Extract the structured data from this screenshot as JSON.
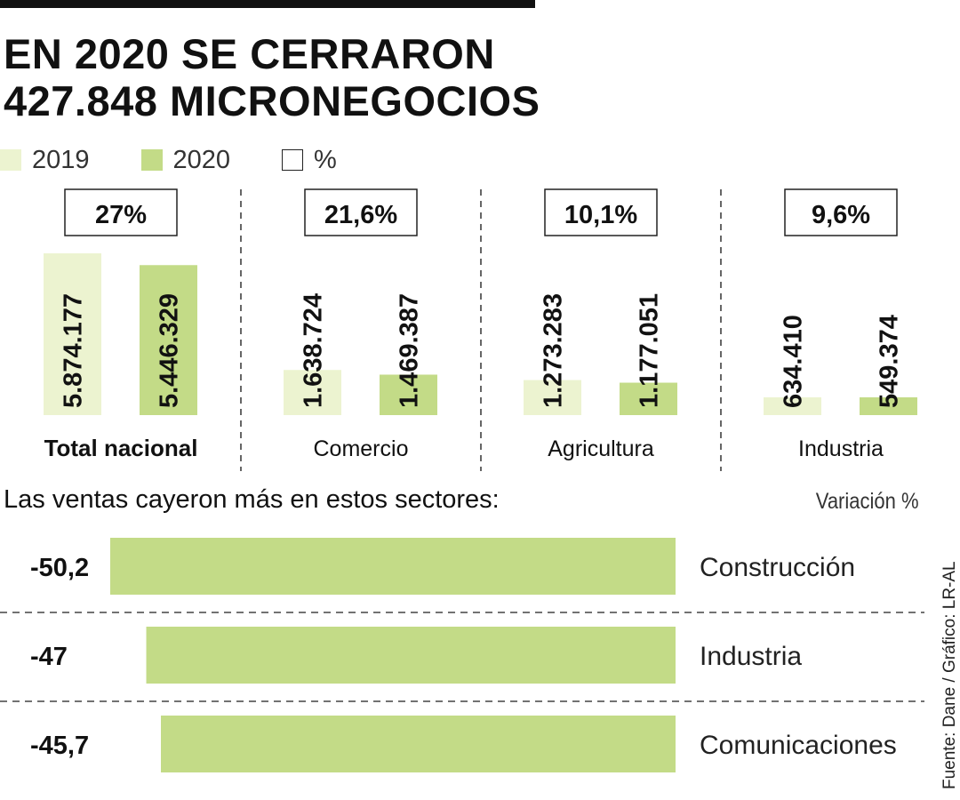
{
  "title_line1": "EN 2020 SE CERRARON",
  "title_line2": "427.848 MICRONEGOCIOS",
  "legend": {
    "y2019": "2019",
    "y2020": "2020",
    "pct": "%"
  },
  "colors": {
    "y2019": "#ecf3d0",
    "y2020": "#c3db87",
    "bar": "#c3db87",
    "text": "#111111"
  },
  "subtitle": "Las ventas cayeron más en estos sectores:",
  "variation_label": "Variación %",
  "source": "Fuente: Dane / Gráfico: LR-AL",
  "chart_data": [
    {
      "type": "bar",
      "title": "EN 2020 SE CERRARON 427.848 MICRONEGOCIOS",
      "categories": [
        "Total nacional",
        "Comercio",
        "Agricultura",
        "Industria"
      ],
      "series": [
        {
          "name": "2019",
          "values": [
            5874177,
            1638724,
            1273283,
            634410
          ],
          "labels": [
            "5.874.177",
            "1.638.724",
            "1.273.283",
            "634.410"
          ]
        },
        {
          "name": "2020",
          "values": [
            5446329,
            1469387,
            1177051,
            549374
          ],
          "labels": [
            "5.446.329",
            "1.469.387",
            "1.177.051",
            "549.374"
          ]
        }
      ],
      "percent_closed": [
        "27%",
        "21,6%",
        "10,1%",
        "9,6%"
      ],
      "ylim": [
        0,
        5874177
      ]
    },
    {
      "type": "bar",
      "orientation": "horizontal",
      "title": "Las ventas cayeron más en estos sectores:",
      "xlabel": "Variación %",
      "categories": [
        "Construcción",
        "Industria",
        "Comunicaciones"
      ],
      "values": [
        -50.2,
        -47,
        -45.7
      ],
      "labels": [
        "-50,2",
        "-47",
        "-45,7"
      ],
      "xlim": [
        -50.2,
        0
      ]
    }
  ]
}
